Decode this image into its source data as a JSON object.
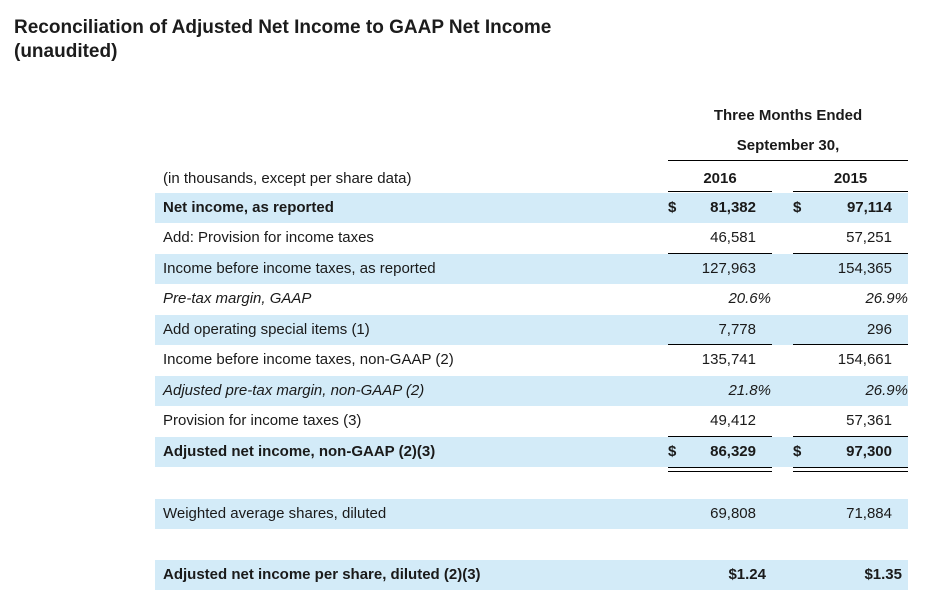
{
  "title_line1": "Reconciliation of Adjusted Net Income to GAAP Net Income",
  "title_line2": "(unaudited)",
  "period_header_1": "Three Months Ended",
  "period_header_2": "September 30,",
  "units_label": "(in thousands, except per share data)",
  "years": [
    "2016",
    "2015"
  ],
  "currency_symbol": "$",
  "rows": [
    {
      "label": "Net income, as reported",
      "v2016": "81,382",
      "v2015": "97,114"
    },
    {
      "label": "Add: Provision for income taxes",
      "v2016": "46,581",
      "v2015": "57,251"
    },
    {
      "label": "Income before income taxes, as reported",
      "v2016": "127,963",
      "v2015": "154,365"
    },
    {
      "label": "Pre-tax margin, GAAP",
      "v2016": "20.6%",
      "v2015": "26.9%"
    },
    {
      "label": "Add operating special items (1)",
      "v2016": "7,778",
      "v2015": "296"
    },
    {
      "label": "Income before income taxes, non-GAAP (2)",
      "v2016": "135,741",
      "v2015": "154,661"
    },
    {
      "label": "Adjusted pre-tax margin, non-GAAP (2)",
      "v2016": "21.8%",
      "v2015": "26.9%"
    },
    {
      "label": "Provision for income taxes (3)",
      "v2016": "49,412",
      "v2015": "57,361"
    },
    {
      "label": "Adjusted net income, non-GAAP (2)(3)",
      "v2016": "86,329",
      "v2015": "97,300"
    },
    {
      "label": "Weighted average shares, diluted",
      "v2016": "69,808",
      "v2015": "71,884"
    },
    {
      "label": "Adjusted net income per share, diluted (2)(3)",
      "v2016": "$1.24",
      "v2015": "$1.35"
    }
  ],
  "colors": {
    "row_shade": "#d3ebf8"
  }
}
